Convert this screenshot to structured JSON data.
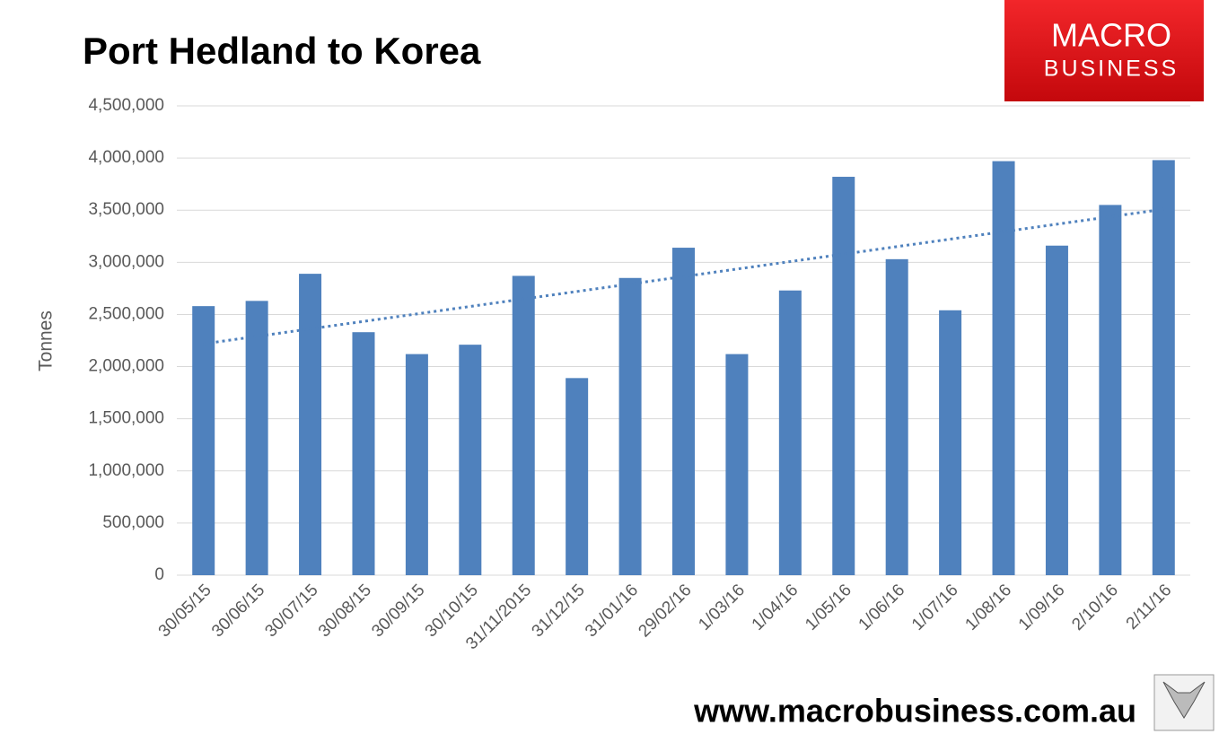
{
  "chart_data": {
    "type": "bar",
    "title": "Port Hedland to Korea",
    "y_label": "Tonnes",
    "categories": [
      "30/05/15",
      "30/06/15",
      "30/07/15",
      "30/08/15",
      "30/09/15",
      "30/10/15",
      "31/11/2015",
      "31/12/15",
      "31/01/16",
      "29/02/16",
      "1/03/16",
      "1/04/16",
      "1/05/16",
      "1/06/16",
      "1/07/16",
      "1/08/16",
      "1/09/16",
      "2/10/16",
      "2/11/16"
    ],
    "values": [
      2580000,
      2630000,
      2890000,
      2330000,
      2120000,
      2210000,
      2870000,
      1890000,
      2850000,
      3140000,
      2120000,
      2730000,
      3820000,
      3030000,
      2540000,
      3970000,
      3160000,
      3550000,
      3980000
    ],
    "color": "#4f81bd",
    "trendline": "linear",
    "ylim": [
      0,
      4500000
    ],
    "yticks": [
      0,
      {
        "value": 500000,
        "label": "500,000"
      },
      {
        "value": 1000000,
        "label": "1,000,000"
      },
      {
        "value": 1500000,
        "label": "1,500,000"
      },
      {
        "value": 2000000,
        "label": "2,000,000"
      },
      {
        "value": 2500000,
        "label": "2,500,000"
      },
      {
        "value": 3000000,
        "label": "3,000,000"
      },
      {
        "value": 3500000,
        "label": "3,500,000"
      },
      {
        "value": 4000000,
        "label": "4,000,000"
      },
      {
        "value": 4500000,
        "label": "4,500,000"
      }
    ],
    "grid": true
  },
  "branding": {
    "logo_line1": "MACRO",
    "logo_line2": "BUSINESS",
    "url": "www.macrobusiness.com.au"
  }
}
